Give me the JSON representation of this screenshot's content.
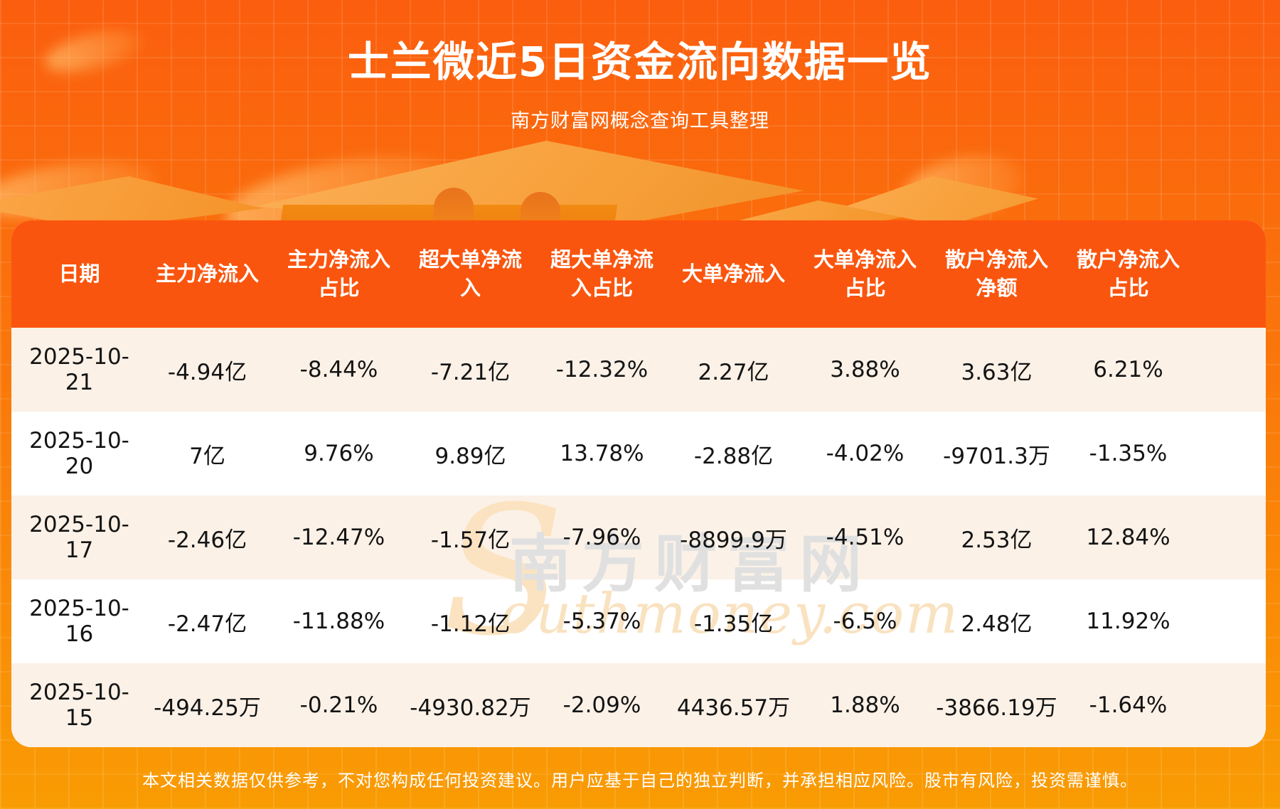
{
  "page": {
    "title": "士兰微近5日资金流向数据一览",
    "subtitle": "南方财富网概念查询工具整理",
    "disclaimer": "本文相关数据仅供参考，不对您构成任何投资建议。用户应基于自己的独立判断，并承担相应风险。股市有风险，投资需谨慎。"
  },
  "watermark": {
    "initial": "S",
    "cn": "南方财富网",
    "en": "outhmoney.com"
  },
  "colors": {
    "bg_top": "#fb5e0e",
    "bg_bottom": "#f99c03",
    "table_header_bg": "#fa550e",
    "row_cream": "#fbf1e7",
    "row_white": "#ffffff",
    "body_text": "#141414",
    "podium": "#f9a845",
    "title_text": "#ffffff"
  },
  "table": {
    "columns": [
      {
        "line1": "日期",
        "line2": ""
      },
      {
        "line1": "主力净流入",
        "line2": ""
      },
      {
        "line1": "主力净流入",
        "line2": "占比"
      },
      {
        "line1": "超大单净流",
        "line2": "入"
      },
      {
        "line1": "超大单净流",
        "line2": "入占比"
      },
      {
        "line1": "大单净流入",
        "line2": ""
      },
      {
        "line1": "大单净流入",
        "line2": "占比"
      },
      {
        "line1": "散户净流入",
        "line2": "净额"
      },
      {
        "line1": "散户净流入",
        "line2": "占比"
      }
    ],
    "rows": [
      {
        "cells": [
          "2025-10-21",
          "-4.94亿",
          "-8.44%",
          "-7.21亿",
          "-12.32%",
          "2.27亿",
          "3.88%",
          "3.63亿",
          "6.21%"
        ]
      },
      {
        "cells": [
          "2025-10-20",
          "7亿",
          "9.76%",
          "9.89亿",
          "13.78%",
          "-2.88亿",
          "-4.02%",
          "-9701.3万",
          "-1.35%"
        ]
      },
      {
        "cells": [
          "2025-10-17",
          "-2.46亿",
          "-12.47%",
          "-1.57亿",
          "-7.96%",
          "-8899.9万",
          "-4.51%",
          "2.53亿",
          "12.84%"
        ]
      },
      {
        "cells": [
          "2025-10-16",
          "-2.47亿",
          "-11.88%",
          "-1.12亿",
          "-5.37%",
          "-1.35亿",
          "-6.5%",
          "2.48亿",
          "11.92%"
        ]
      },
      {
        "cells": [
          "2025-10-15",
          "-494.25万",
          "-0.21%",
          "-4930.82万",
          "-2.09%",
          "4436.57万",
          "1.88%",
          "-3866.19万",
          "-1.64%"
        ]
      }
    ]
  },
  "chart_data": {
    "type": "table",
    "title": "士兰微近5日资金流向数据一览",
    "subtitle": "南方财富网概念查询工具整理",
    "columns": [
      "日期",
      "主力净流入",
      "主力净流入占比",
      "超大单净流入",
      "超大单净流入占比",
      "大单净流入",
      "大单净流入占比",
      "散户净流入净额",
      "散户净流入占比"
    ],
    "rows": [
      [
        "2025-10-21",
        "-4.94亿",
        "-8.44%",
        "-7.21亿",
        "-12.32%",
        "2.27亿",
        "3.88%",
        "3.63亿",
        "6.21%"
      ],
      [
        "2025-10-20",
        "7亿",
        "9.76%",
        "9.89亿",
        "13.78%",
        "-2.88亿",
        "-4.02%",
        "-9701.3万",
        "-1.35%"
      ],
      [
        "2025-10-17",
        "-2.46亿",
        "-12.47%",
        "-1.57亿",
        "-7.96%",
        "-8899.9万",
        "-4.51%",
        "2.53亿",
        "12.84%"
      ],
      [
        "2025-10-16",
        "-2.47亿",
        "-11.88%",
        "-1.12亿",
        "-5.37%",
        "-1.35亿",
        "-6.5%",
        "2.48亿",
        "11.92%"
      ],
      [
        "2025-10-15",
        "-494.25万",
        "-0.21%",
        "-4930.82万",
        "-2.09%",
        "4436.57万",
        "1.88%",
        "-3866.19万",
        "-1.64%"
      ]
    ]
  }
}
